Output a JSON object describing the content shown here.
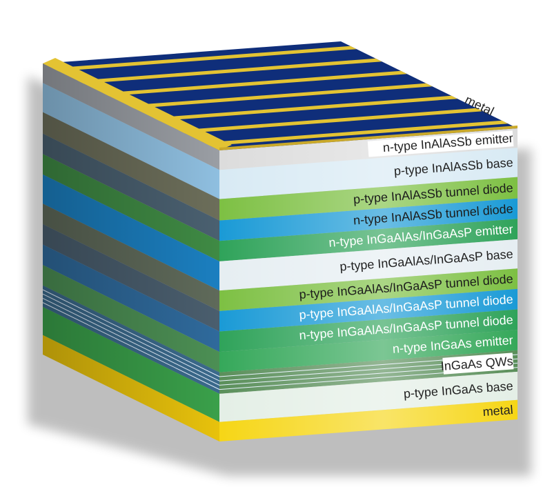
{
  "diagram": {
    "top_metal_label": "metal",
    "layers": [
      {
        "label": "n-type InAlAsSb emitter",
        "front_color": "#dcdcdc",
        "side_color": "#9a9ea4",
        "text_color": "#222222",
        "label_bg": "#ffffff"
      },
      {
        "label": "p-type InAlAsSb base",
        "front_color": "#d8eaf4",
        "side_color": "#8fbfe0",
        "text_color": "#222222",
        "label_bg": ""
      },
      {
        "label": "p-type InAlAsSb tunnel diode",
        "front_color": "#7dc043",
        "side_color": "#6c6e5a",
        "text_color": "#1c1c1c",
        "label_bg": ""
      },
      {
        "label": "n-type InAlAsSb tunnel diode",
        "front_color": "#1a9ad6",
        "side_color": "#4a6070",
        "text_color": "#1c1c1c",
        "label_bg": ""
      },
      {
        "label": "n-type InGaAlAs/InGaAsP emitter",
        "front_color": "#2fa35a",
        "side_color": "#3f8a44",
        "text_color": "#ffffff",
        "label_bg": ""
      },
      {
        "label": "p-type InGaAlAs/InGaAsP base",
        "front_color": "#e6eef2",
        "side_color": "#1b7fc0",
        "text_color": "#222222",
        "label_bg": ""
      },
      {
        "label": "p-type InGaAlAs/InGaAsP  tunnel diode",
        "front_color": "#7dc043",
        "side_color": "#5f6a5a",
        "text_color": "#1c1c1c",
        "label_bg": ""
      },
      {
        "label": "p-type InGaAlAs/InGaAsP  tunnel diode",
        "front_color": "#1a9ad6",
        "side_color": "#4a5e6e",
        "text_color": "#ffffff",
        "label_bg": ""
      },
      {
        "label": "n-type InGaAlAs/InGaAsP  tunnel diode",
        "front_color": "#2fa35a",
        "side_color": "#2f6a9c",
        "text_color": "#ffffff",
        "label_bg": ""
      },
      {
        "label": "n-type InGaAs emitter",
        "front_color": "#35a85a",
        "side_color": "#4c8f54",
        "text_color": "#ffffff",
        "label_bg": ""
      },
      {
        "label": "InGaAs QWs",
        "front_color": "#5a8f5a",
        "side_color": "#3b6a8c",
        "text_color": "#222222",
        "label_bg": "#ffffff"
      },
      {
        "label": "p-type InGaAs base",
        "front_color": "#e4efe6",
        "side_color": "#3aa04a",
        "text_color": "#222222",
        "label_bg": ""
      },
      {
        "label": "metal",
        "front_color": "#f6d616",
        "side_color": "#e8c20c",
        "text_color": "#222222",
        "label_bg": ""
      }
    ],
    "top_face": {
      "grid_color": "#0f2e7a",
      "finger_color": "#e3c333",
      "finger_count": 7
    }
  }
}
